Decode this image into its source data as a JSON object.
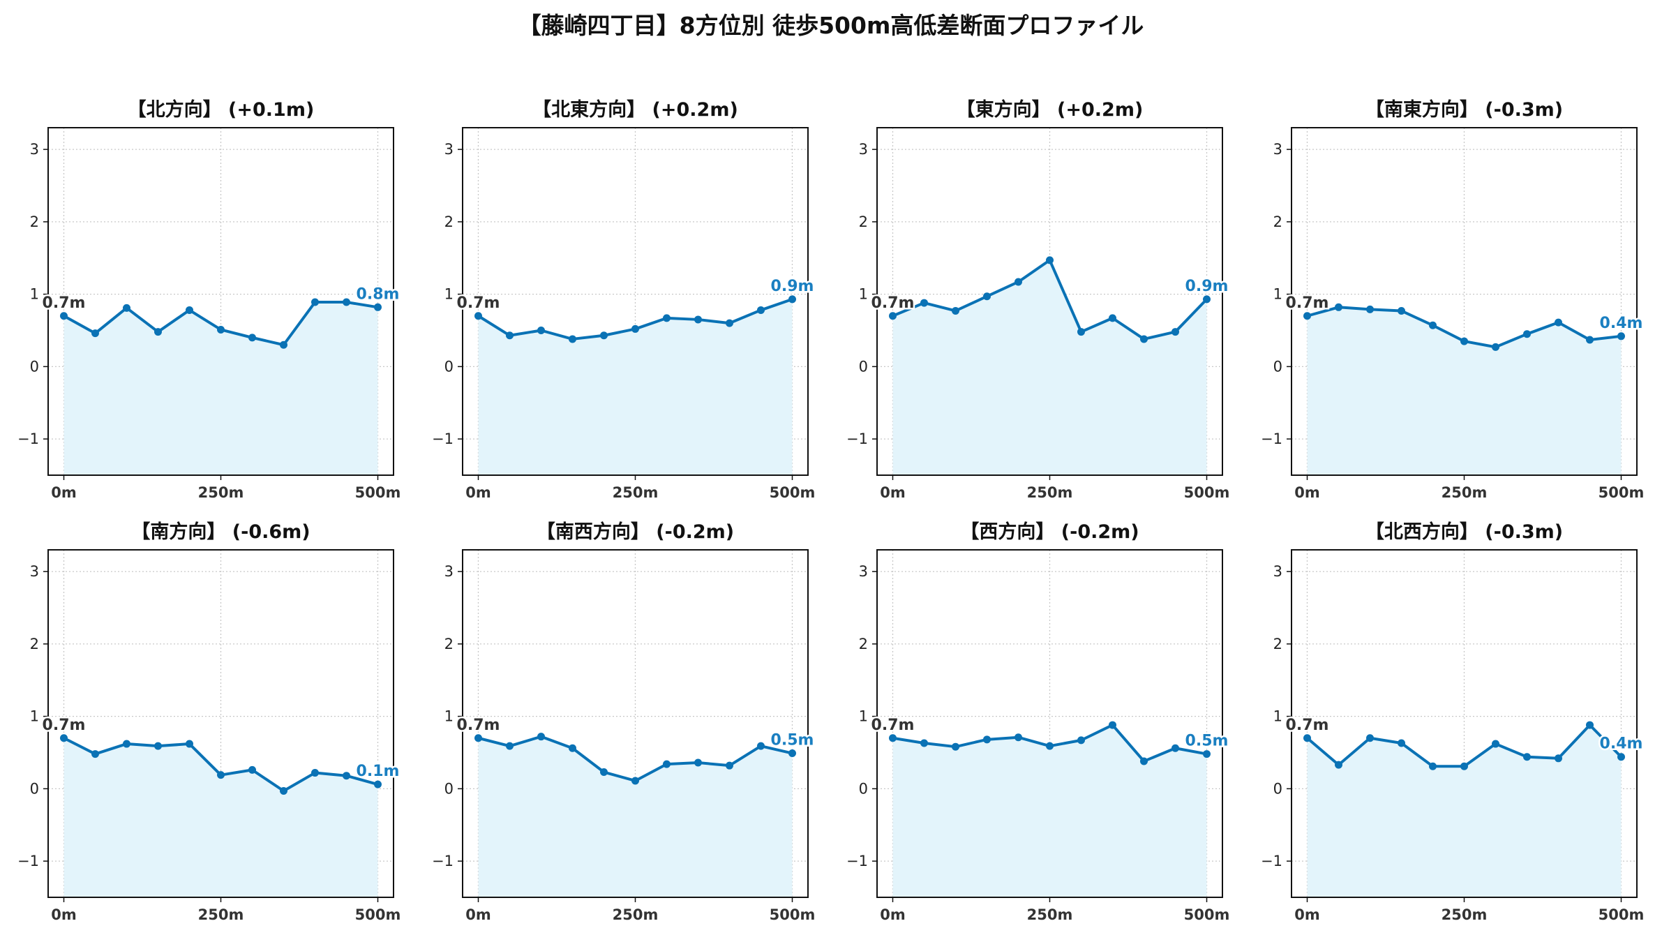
{
  "suptitle": "【藤崎四丁目】8方位別 徒歩500m高低差断面プロファイル",
  "colors": {
    "line": "#0a72b5",
    "fill": "#e3f4fb",
    "start_label": "#333333",
    "end_label": "#1a7fc1",
    "grid": "#c8c8c8"
  },
  "chart_data": [
    {
      "type": "area",
      "title": "【北方向】 (+0.1m)",
      "x": [
        0,
        50,
        100,
        150,
        200,
        250,
        300,
        350,
        400,
        450,
        500
      ],
      "values": [
        0.7,
        0.46,
        0.81,
        0.48,
        0.78,
        0.51,
        0.4,
        0.3,
        0.89,
        0.89,
        0.82
      ],
      "xticks": [
        "0m",
        "250m",
        "500m"
      ],
      "yticks": [
        "−1",
        "0",
        "1",
        "2",
        "3"
      ],
      "ylim": [
        -1.5,
        3.3
      ],
      "xlim": [
        -25,
        525
      ],
      "grid": true,
      "start_label": "0.7m",
      "end_label": "0.8m"
    },
    {
      "type": "area",
      "title": "【北東方向】 (+0.2m)",
      "x": [
        0,
        50,
        100,
        150,
        200,
        250,
        300,
        350,
        400,
        450,
        500
      ],
      "values": [
        0.7,
        0.43,
        0.5,
        0.38,
        0.43,
        0.52,
        0.67,
        0.65,
        0.6,
        0.78,
        0.93
      ],
      "xticks": [
        "0m",
        "250m",
        "500m"
      ],
      "yticks": [
        "−1",
        "0",
        "1",
        "2",
        "3"
      ],
      "ylim": [
        -1.5,
        3.3
      ],
      "xlim": [
        -25,
        525
      ],
      "grid": true,
      "start_label": "0.7m",
      "end_label": "0.9m"
    },
    {
      "type": "area",
      "title": "【東方向】 (+0.2m)",
      "x": [
        0,
        50,
        100,
        150,
        200,
        250,
        300,
        350,
        400,
        450,
        500
      ],
      "values": [
        0.7,
        0.88,
        0.77,
        0.97,
        1.17,
        1.47,
        0.48,
        0.67,
        0.38,
        0.48,
        0.93
      ],
      "xticks": [
        "0m",
        "250m",
        "500m"
      ],
      "yticks": [
        "−1",
        "0",
        "1",
        "2",
        "3"
      ],
      "ylim": [
        -1.5,
        3.3
      ],
      "xlim": [
        -25,
        525
      ],
      "grid": true,
      "start_label": "0.7m",
      "end_label": "0.9m"
    },
    {
      "type": "area",
      "title": "【南東方向】 (-0.3m)",
      "x": [
        0,
        50,
        100,
        150,
        200,
        250,
        300,
        350,
        400,
        450,
        500
      ],
      "values": [
        0.7,
        0.82,
        0.79,
        0.77,
        0.57,
        0.35,
        0.27,
        0.45,
        0.61,
        0.37,
        0.42
      ],
      "xticks": [
        "0m",
        "250m",
        "500m"
      ],
      "yticks": [
        "−1",
        "0",
        "1",
        "2",
        "3"
      ],
      "ylim": [
        -1.5,
        3.3
      ],
      "xlim": [
        -25,
        525
      ],
      "grid": true,
      "start_label": "0.7m",
      "end_label": "0.4m"
    },
    {
      "type": "area",
      "title": "【南方向】 (-0.6m)",
      "x": [
        0,
        50,
        100,
        150,
        200,
        250,
        300,
        350,
        400,
        450,
        500
      ],
      "values": [
        0.7,
        0.48,
        0.62,
        0.59,
        0.62,
        0.19,
        0.26,
        -0.03,
        0.22,
        0.18,
        0.06
      ],
      "xticks": [
        "0m",
        "250m",
        "500m"
      ],
      "yticks": [
        "−1",
        "0",
        "1",
        "2",
        "3"
      ],
      "ylim": [
        -1.5,
        3.3
      ],
      "xlim": [
        -25,
        525
      ],
      "grid": true,
      "start_label": "0.7m",
      "end_label": "0.1m"
    },
    {
      "type": "area",
      "title": "【南西方向】 (-0.2m)",
      "x": [
        0,
        50,
        100,
        150,
        200,
        250,
        300,
        350,
        400,
        450,
        500
      ],
      "values": [
        0.7,
        0.59,
        0.72,
        0.56,
        0.23,
        0.11,
        0.34,
        0.36,
        0.32,
        0.59,
        0.49
      ],
      "xticks": [
        "0m",
        "250m",
        "500m"
      ],
      "yticks": [
        "−1",
        "0",
        "1",
        "2",
        "3"
      ],
      "ylim": [
        -1.5,
        3.3
      ],
      "xlim": [
        -25,
        525
      ],
      "grid": true,
      "start_label": "0.7m",
      "end_label": "0.5m"
    },
    {
      "type": "area",
      "title": "【西方向】 (-0.2m)",
      "x": [
        0,
        50,
        100,
        150,
        200,
        250,
        300,
        350,
        400,
        450,
        500
      ],
      "values": [
        0.7,
        0.63,
        0.58,
        0.68,
        0.71,
        0.59,
        0.67,
        0.88,
        0.38,
        0.56,
        0.48
      ],
      "xticks": [
        "0m",
        "250m",
        "500m"
      ],
      "yticks": [
        "−1",
        "0",
        "1",
        "2",
        "3"
      ],
      "ylim": [
        -1.5,
        3.3
      ],
      "xlim": [
        -25,
        525
      ],
      "grid": true,
      "start_label": "0.7m",
      "end_label": "0.5m"
    },
    {
      "type": "area",
      "title": "【北西方向】 (-0.3m)",
      "x": [
        0,
        50,
        100,
        150,
        200,
        250,
        300,
        350,
        400,
        450,
        500
      ],
      "values": [
        0.7,
        0.33,
        0.7,
        0.63,
        0.31,
        0.31,
        0.62,
        0.44,
        0.42,
        0.88,
        0.44
      ],
      "xticks": [
        "0m",
        "250m",
        "500m"
      ],
      "yticks": [
        "−1",
        "0",
        "1",
        "2",
        "3"
      ],
      "ylim": [
        -1.5,
        3.3
      ],
      "xlim": [
        -25,
        525
      ],
      "grid": true,
      "start_label": "0.7m",
      "end_label": "0.4m"
    }
  ]
}
